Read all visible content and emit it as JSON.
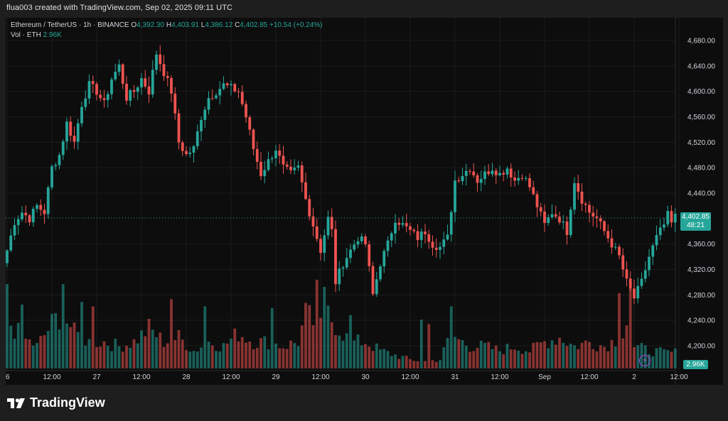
{
  "header": {
    "created_by": "flua003 created with TradingView.com, Sep 02, 2025 09:11 UTC"
  },
  "legend": {
    "symbol": "Ethereum / TetherUS · 1h · BINANCE",
    "o_label": "O",
    "o": "4,392.30",
    "h_label": "H",
    "h": "4,403.91",
    "l_label": "L",
    "l": "4,386.12",
    "c_label": "C",
    "c": "4,402.85",
    "change": "+10.54 (+0.24%)",
    "vol_label": "Vol · ETH",
    "vol": "2.96K"
  },
  "last_price": {
    "price": "4,402.85",
    "countdown": "48:21",
    "volume": "2.96K"
  },
  "brand": {
    "name": "TradingView",
    "icon": "tradingview-logo-icon"
  },
  "colors": {
    "up": "#26a69a",
    "down": "#ef5350",
    "background": "#0d0d0d",
    "accent": "#b045e6"
  },
  "chart_data": {
    "type": "candlestick",
    "symbol": "ETHUSDT",
    "interval": "1h",
    "ylim": [
      4208,
      4688
    ],
    "yticks": [
      {
        "value": 4680,
        "label": "4,680.00"
      },
      {
        "value": 4640,
        "label": "4,640.00"
      },
      {
        "value": 4600,
        "label": "4,600.00"
      },
      {
        "value": 4560,
        "label": "4,560.00"
      },
      {
        "value": 4520,
        "label": "4,520.00"
      },
      {
        "value": 4480,
        "label": "4,480.00"
      },
      {
        "value": 4440,
        "label": "4,440.00"
      },
      {
        "value": 4360,
        "label": "4,360.00"
      },
      {
        "value": 4320,
        "label": "4,320.00"
      },
      {
        "value": 4280,
        "label": "4,280.00"
      },
      {
        "value": 4240,
        "label": "4,240.00"
      },
      {
        "value": 4200,
        "label": "4,200.00"
      }
    ],
    "xticks": [
      {
        "bar": 0,
        "label": "6"
      },
      {
        "bar": 12,
        "label": "12:00"
      },
      {
        "bar": 24,
        "label": "27"
      },
      {
        "bar": 36,
        "label": "12:00"
      },
      {
        "bar": 48,
        "label": "28"
      },
      {
        "bar": 60,
        "label": "12:00"
      },
      {
        "bar": 72,
        "label": "29"
      },
      {
        "bar": 84,
        "label": "12:00"
      },
      {
        "bar": 96,
        "label": "30"
      },
      {
        "bar": 108,
        "label": "12:00"
      },
      {
        "bar": 120,
        "label": "31"
      },
      {
        "bar": 132,
        "label": "12:00"
      },
      {
        "bar": 144,
        "label": "Sep"
      },
      {
        "bar": 156,
        "label": "12:00"
      },
      {
        "bar": 168,
        "label": "2"
      },
      {
        "bar": 180,
        "label": "12:00"
      }
    ],
    "anchors": [
      [
        0,
        4350
      ],
      [
        2,
        4395
      ],
      [
        4,
        4410
      ],
      [
        6,
        4400
      ],
      [
        8,
        4420
      ],
      [
        10,
        4410
      ],
      [
        12,
        4480
      ],
      [
        14,
        4500
      ],
      [
        16,
        4550
      ],
      [
        18,
        4520
      ],
      [
        20,
        4580
      ],
      [
        22,
        4610
      ],
      [
        24,
        4600
      ],
      [
        26,
        4580
      ],
      [
        28,
        4620
      ],
      [
        30,
        4640
      ],
      [
        32,
        4590
      ],
      [
        34,
        4600
      ],
      [
        36,
        4620
      ],
      [
        38,
        4600
      ],
      [
        40,
        4660
      ],
      [
        42,
        4630
      ],
      [
        44,
        4600
      ],
      [
        46,
        4520
      ],
      [
        48,
        4500
      ],
      [
        50,
        4510
      ],
      [
        52,
        4560
      ],
      [
        54,
        4590
      ],
      [
        56,
        4600
      ],
      [
        58,
        4610
      ],
      [
        62,
        4600
      ],
      [
        64,
        4560
      ],
      [
        66,
        4510
      ],
      [
        68,
        4470
      ],
      [
        70,
        4490
      ],
      [
        72,
        4510
      ],
      [
        74,
        4480
      ],
      [
        76,
        4470
      ],
      [
        78,
        4480
      ],
      [
        80,
        4430
      ],
      [
        82,
        4390
      ],
      [
        84,
        4350
      ],
      [
        86,
        4400
      ],
      [
        87,
        4380
      ],
      [
        88,
        4300
      ],
      [
        90,
        4330
      ],
      [
        92,
        4350
      ],
      [
        94,
        4370
      ],
      [
        96,
        4360
      ],
      [
        98,
        4280
      ],
      [
        100,
        4330
      ],
      [
        102,
        4360
      ],
      [
        104,
        4400
      ],
      [
        106,
        4390
      ],
      [
        108,
        4380
      ],
      [
        110,
        4370
      ],
      [
        112,
        4380
      ],
      [
        114,
        4360
      ],
      [
        116,
        4355
      ],
      [
        118,
        4370
      ],
      [
        120,
        4460
      ],
      [
        122,
        4470
      ],
      [
        124,
        4480
      ],
      [
        126,
        4460
      ],
      [
        128,
        4470
      ],
      [
        130,
        4480
      ],
      [
        132,
        4470
      ],
      [
        134,
        4480
      ],
      [
        136,
        4460
      ],
      [
        138,
        4470
      ],
      [
        140,
        4450
      ],
      [
        142,
        4420
      ],
      [
        144,
        4390
      ],
      [
        146,
        4410
      ],
      [
        148,
        4400
      ],
      [
        150,
        4380
      ],
      [
        152,
        4460
      ],
      [
        154,
        4430
      ],
      [
        156,
        4410
      ],
      [
        158,
        4400
      ],
      [
        160,
        4380
      ],
      [
        162,
        4360
      ],
      [
        164,
        4340
      ],
      [
        166,
        4300
      ],
      [
        168,
        4275
      ],
      [
        170,
        4300
      ],
      [
        172,
        4340
      ],
      [
        174,
        4370
      ],
      [
        176,
        4390
      ],
      [
        177,
        4405
      ],
      [
        178,
        4392
      ],
      [
        179,
        4403
      ]
    ],
    "volume_anchors": [
      [
        0,
        0.55
      ],
      [
        4,
        0.35
      ],
      [
        8,
        0.25
      ],
      [
        12,
        0.5
      ],
      [
        14,
        0.6
      ],
      [
        16,
        0.55
      ],
      [
        18,
        0.4
      ],
      [
        22,
        0.3
      ],
      [
        26,
        0.3
      ],
      [
        30,
        0.25
      ],
      [
        34,
        0.3
      ],
      [
        38,
        0.45
      ],
      [
        42,
        0.3
      ],
      [
        46,
        0.35
      ],
      [
        50,
        0.2
      ],
      [
        54,
        0.3
      ],
      [
        58,
        0.25
      ],
      [
        62,
        0.4
      ],
      [
        66,
        0.3
      ],
      [
        70,
        0.3
      ],
      [
        74,
        0.25
      ],
      [
        78,
        0.3
      ],
      [
        80,
        0.6
      ],
      [
        84,
        0.45
      ],
      [
        86,
        0.6
      ],
      [
        88,
        0.5
      ],
      [
        92,
        0.3
      ],
      [
        96,
        0.3
      ],
      [
        100,
        0.2
      ],
      [
        104,
        0.15
      ],
      [
        108,
        0.1
      ],
      [
        112,
        0.08
      ],
      [
        116,
        0.1
      ],
      [
        118,
        0.3
      ],
      [
        120,
        0.35
      ],
      [
        124,
        0.25
      ],
      [
        128,
        0.25
      ],
      [
        132,
        0.2
      ],
      [
        136,
        0.25
      ],
      [
        140,
        0.2
      ],
      [
        144,
        0.3
      ],
      [
        148,
        0.35
      ],
      [
        152,
        0.25
      ],
      [
        156,
        0.3
      ],
      [
        160,
        0.25
      ],
      [
        164,
        0.35
      ],
      [
        166,
        0.55
      ],
      [
        168,
        0.25
      ],
      [
        172,
        0.2
      ],
      [
        176,
        0.18
      ],
      [
        179,
        0.18
      ]
    ],
    "volume_highlights": [
      [
        0,
        0.95
      ],
      [
        4,
        0.72
      ],
      [
        15,
        0.95
      ],
      [
        20,
        0.75
      ],
      [
        23,
        0.7
      ],
      [
        44,
        0.78
      ],
      [
        53,
        0.7
      ],
      [
        71,
        0.68
      ],
      [
        83,
        1.0
      ],
      [
        85,
        0.92
      ],
      [
        92,
        0.6
      ],
      [
        111,
        0.55
      ],
      [
        113,
        0.5
      ],
      [
        119,
        0.7
      ],
      [
        164,
        0.85
      ],
      [
        167,
        0.9
      ]
    ]
  }
}
